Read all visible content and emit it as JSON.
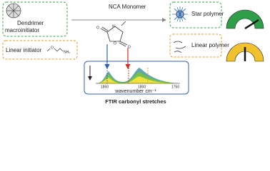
{
  "dendrimer_label": [
    "Dendrimer",
    "macroinitiator"
  ],
  "monomer_label": "NCA Monomer",
  "star_label": "Star polymer",
  "linear_initiator_label": "Linear initiator",
  "initiator_atoms": {
    "oxygen": "O",
    "amine": "NH₂"
  },
  "linear_polymer_label": "Linear polymer",
  "nca_atoms": {
    "nitrogen": "N",
    "ring_oxygen": "O",
    "carbonyl_left": "O",
    "carbonyl_right": "O"
  },
  "spectrum": {
    "ticks": [
      "1850",
      "1800",
      "1750"
    ],
    "axis_label": "wavenumber cm⁻¹"
  },
  "ftir_label": "FTIR carbonyl stretches"
}
